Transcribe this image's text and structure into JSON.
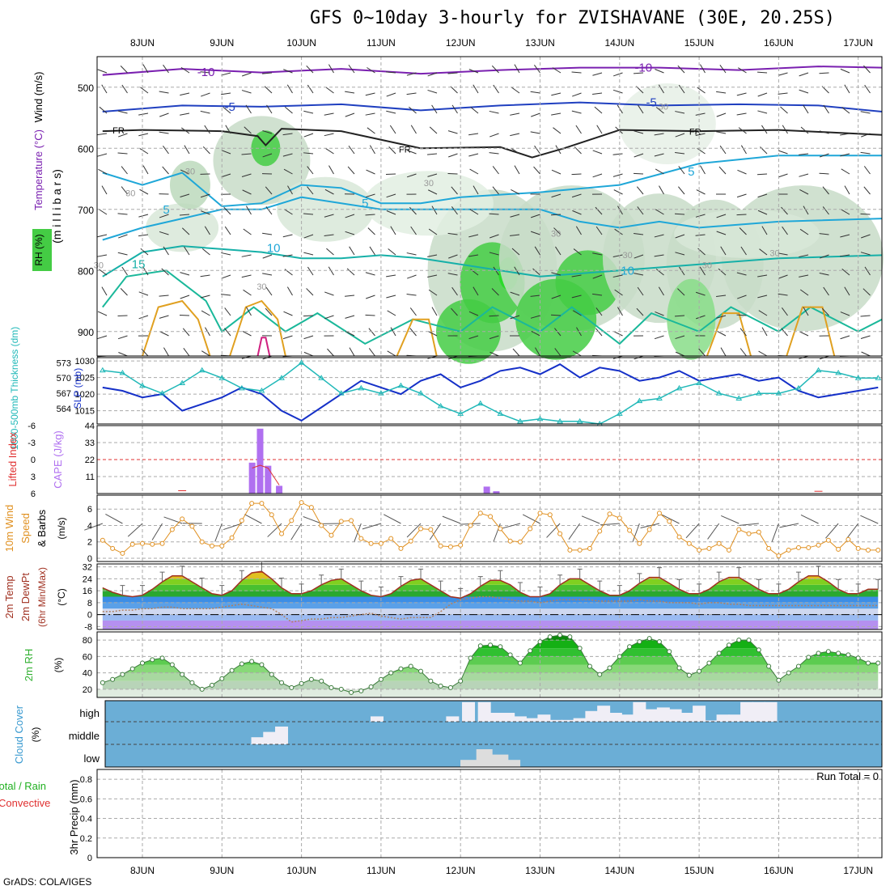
{
  "title": "GFS 0~10day 3-hourly for ZVISHAVANE (30E, 20.25S)",
  "credit": "GrADS: COLA/IGES",
  "dates": [
    "8JUN",
    "9JUN",
    "10JUN",
    "11JUN",
    "12JUN",
    "13JUN",
    "14JUN",
    "15JUN",
    "16JUN",
    "17JUN"
  ],
  "colors": {
    "grid": "#aaaaaa",
    "t_warm": "#e0a020",
    "t_cool": "#1fa7d8",
    "t_cold": "#2040c0",
    "t_vcold": "#7a20b0",
    "rh": "#44cc44",
    "slp": "#1530c8",
    "thick": "#20b8b8",
    "cape": "#b070f0",
    "li": "#e03030",
    "wind": "#e09020",
    "temp": "#a03020",
    "dew": "#b08060",
    "rh2m": "#30b030",
    "cloud": "#6baed6",
    "cloudfill": "#f0eef6"
  },
  "chart_data": [
    {
      "id": "upper",
      "type": "contour",
      "labels": {
        "wind": "Wind (m/s)",
        "temperature": "Temperature (°C)",
        "rh": "RH (%)",
        "pressure": "(m i l l i b a r s)"
      },
      "y_ticks": [
        "500",
        "600",
        "700",
        "800",
        "900"
      ],
      "y_range": [
        450,
        940
      ],
      "contour_labels": [
        {
          "text": "-10",
          "d": 0.8,
          "p": 475
        },
        {
          "text": "-10",
          "d": 6.3,
          "p": 468
        },
        {
          "text": "-5",
          "d": 1.1,
          "p": 532
        },
        {
          "text": "-5",
          "d": 6.4,
          "p": 525
        },
        {
          "text": "FR",
          "d": -0.3,
          "p": 569
        },
        {
          "text": "FR",
          "d": 3.3,
          "p": 600
        },
        {
          "text": "FR",
          "d": 6.95,
          "p": 571
        },
        {
          "text": "5",
          "d": 0.3,
          "p": 700
        },
        {
          "text": "5",
          "d": 2.8,
          "p": 690
        },
        {
          "text": "5",
          "d": 6.9,
          "p": 638
        },
        {
          "text": "10",
          "d": 1.65,
          "p": 763
        },
        {
          "text": "10",
          "d": 6.1,
          "p": 800
        },
        {
          "text": "15",
          "d": -0.05,
          "p": 790
        },
        {
          "text": "30",
          "d": 0.6,
          "p": 636
        },
        {
          "text": "30",
          "d": -0.15,
          "p": 672
        },
        {
          "text": "30",
          "d": 3.6,
          "p": 655
        },
        {
          "text": "30",
          "d": 1.5,
          "p": 825
        },
        {
          "text": "30",
          "d": 5.2,
          "p": 738
        },
        {
          "text": "30",
          "d": 6.1,
          "p": 773
        },
        {
          "text": "30",
          "d": 6.55,
          "p": 530
        },
        {
          "text": "30",
          "d": 7.1,
          "p": 790
        },
        {
          "text": "30",
          "d": -0.55,
          "p": 790
        },
        {
          "text": "30",
          "d": 7.95,
          "p": 770
        }
      ]
    },
    {
      "id": "slp_thickness",
      "type": "line",
      "labels": {
        "thickness": "1000-500mb Thickness (dm)",
        "slp": "SLP (mb)"
      },
      "left_ticks": [
        "573",
        "570",
        "567",
        "564"
      ],
      "right_ticks": [
        "1030",
        "1025",
        "1020",
        "1015"
      ],
      "x": [
        -0.5,
        -0.25,
        0,
        0.25,
        0.5,
        0.75,
        1,
        1.25,
        1.5,
        1.75,
        2,
        2.25,
        2.5,
        2.75,
        3,
        3.25,
        3.5,
        3.75,
        4,
        4.25,
        4.5,
        4.75,
        5,
        5.25,
        5.5,
        5.75,
        6,
        6.25,
        6.5,
        6.75,
        7,
        7.25,
        7.5,
        7.75,
        8,
        8.25,
        8.5,
        8.75,
        9,
        9.25
      ],
      "series": [
        {
          "name": "SLP",
          "values": [
            1022,
            1021,
            1019,
            1020,
            1015,
            1017,
            1019,
            1022,
            1020,
            1015,
            1012,
            1016,
            1020,
            1024,
            1022,
            1020,
            1024,
            1026,
            1022,
            1024,
            1027,
            1028,
            1026,
            1029,
            1025,
            1028,
            1027,
            1024,
            1025,
            1027,
            1024,
            1025,
            1026,
            1024,
            1025,
            1021,
            1019,
            1020,
            1021,
            1022
          ]
        },
        {
          "name": "Thickness",
          "values": [
            571.5,
            571,
            568.5,
            567,
            569,
            571.5,
            570,
            568,
            567.5,
            570,
            573,
            570,
            567,
            568,
            567,
            568.5,
            567,
            564.5,
            563,
            565,
            563,
            561.5,
            562,
            561.5,
            561.5,
            561,
            563,
            565.5,
            566,
            568,
            569,
            567,
            566,
            567,
            567,
            568,
            571.5,
            571,
            570,
            570
          ]
        }
      ]
    },
    {
      "id": "cape_li",
      "type": "bar",
      "labels": {
        "li": "Lifted Index",
        "cape": "CAPE (J/kg)"
      },
      "left_ticks": [
        "-6",
        "-3",
        "0",
        "3",
        "6"
      ],
      "right_ticks": [
        "44",
        "33",
        "22",
        "11"
      ],
      "bars": [
        {
          "x": 1.38,
          "v": 20
        },
        {
          "x": 1.48,
          "v": 42
        },
        {
          "x": 1.58,
          "v": 18
        },
        {
          "x": 1.72,
          "v": 5
        },
        {
          "x": 4.33,
          "v": 4.5
        },
        {
          "x": 4.45,
          "v": 1.5
        }
      ],
      "li_points": [
        {
          "x": 0.45,
          "v": 5.5
        },
        {
          "x": 0.55,
          "v": 5.5
        },
        {
          "x": 1.38,
          "v": 1.5
        },
        {
          "x": 1.48,
          "v": 1
        },
        {
          "x": 1.58,
          "v": 1.5
        },
        {
          "x": 1.72,
          "v": 4.5
        },
        {
          "x": 8.45,
          "v": 5.6
        },
        {
          "x": 8.55,
          "v": 5.6
        }
      ]
    },
    {
      "id": "wind10m",
      "type": "line",
      "labels": {
        "wind": "10m Wind",
        "speed": "Speed",
        "barbs": "& Barbs",
        "unit": "(m/s)"
      },
      "y_ticks": [
        "6",
        "4",
        "2",
        "0"
      ],
      "x": [
        -0.5,
        -0.375,
        -0.25,
        -0.125,
        0,
        0.125,
        0.25,
        0.375,
        0.5,
        0.625,
        0.75,
        0.875,
        1,
        1.125,
        1.25,
        1.375,
        1.5,
        1.625,
        1.75,
        1.875,
        2,
        2.125,
        2.25,
        2.375,
        2.5,
        2.625,
        2.75,
        2.875,
        3,
        3.125,
        3.25,
        3.375,
        3.5,
        3.625,
        3.75,
        3.875,
        4,
        4.125,
        4.25,
        4.375,
        4.5,
        4.625,
        4.75,
        4.875,
        5,
        5.125,
        5.25,
        5.375,
        5.5,
        5.625,
        5.75,
        5.875,
        6,
        6.125,
        6.25,
        6.375,
        6.5,
        6.625,
        6.75,
        6.875,
        7,
        7.125,
        7.25,
        7.375,
        7.5,
        7.625,
        7.75,
        7.875,
        8,
        8.125,
        8.25,
        8.375,
        8.5,
        8.625,
        8.75,
        8.875,
        9,
        9.125,
        9.25
      ],
      "series": [
        {
          "name": "Speed",
          "values": [
            2.2,
            1.2,
            0.6,
            1.7,
            1.8,
            1.7,
            1.8,
            3.5,
            4.8,
            3.9,
            2.0,
            1.5,
            1.5,
            2.5,
            4.6,
            6.7,
            6.7,
            5.3,
            3.0,
            4.6,
            6.8,
            6.2,
            4.0,
            2.8,
            4.5,
            4.6,
            2.4,
            1.8,
            1.8,
            2.4,
            1.2,
            2.1,
            3.6,
            3.5,
            1.5,
            1.4,
            1.6,
            4.0,
            5.5,
            5.1,
            3.6,
            2.1,
            2.0,
            3.6,
            5.5,
            5.3,
            3.0,
            1.0,
            1.0,
            1.2,
            3.3,
            5.4,
            4.9,
            3.4,
            1.8,
            3.5,
            5.5,
            4.5,
            2.6,
            1.8,
            1.0,
            1.2,
            1.8,
            1.0,
            3.5,
            3.0,
            3.2,
            1.2,
            0.3,
            1.0,
            1.3,
            1.3,
            1.6,
            2.2,
            1.1,
            2.3,
            1.2,
            1.0,
            1.0
          ]
        }
      ]
    },
    {
      "id": "temp2m",
      "type": "area",
      "labels": {
        "temp": "2m Temp",
        "dew": "2m DewPt",
        "minmax": "(6hr Min/Max)",
        "unit": "(°C)"
      },
      "y_ticks": [
        "32",
        "24",
        "16",
        "8",
        "0",
        "-8"
      ],
      "x": [
        -0.5,
        -0.375,
        -0.25,
        -0.125,
        0,
        0.125,
        0.25,
        0.375,
        0.5,
        0.625,
        0.75,
        0.875,
        1,
        1.125,
        1.25,
        1.375,
        1.5,
        1.625,
        1.75,
        1.875,
        2,
        2.125,
        2.25,
        2.375,
        2.5,
        2.625,
        2.75,
        2.875,
        3,
        3.125,
        3.25,
        3.375,
        3.5,
        3.625,
        3.75,
        3.875,
        4,
        4.125,
        4.25,
        4.375,
        4.5,
        4.625,
        4.75,
        4.875,
        5,
        5.125,
        5.25,
        5.375,
        5.5,
        5.625,
        5.75,
        5.875,
        6,
        6.125,
        6.25,
        6.375,
        6.5,
        6.625,
        6.75,
        6.875,
        7,
        7.125,
        7.25,
        7.375,
        7.5,
        7.625,
        7.75,
        7.875,
        8,
        8.125,
        8.25,
        8.375,
        8.5,
        8.625,
        8.75,
        8.875,
        9,
        9.125,
        9.25
      ],
      "series": [
        {
          "name": "Temp",
          "values": [
            18,
            15,
            13,
            12,
            13,
            17,
            22,
            26,
            26,
            22,
            18,
            14,
            13,
            16,
            23,
            28,
            29,
            24,
            18,
            14,
            14,
            16,
            20,
            23,
            24,
            20,
            16,
            13,
            12,
            14,
            19,
            23,
            24,
            20,
            16,
            12,
            11,
            14,
            19,
            23,
            23,
            20,
            15,
            12,
            12,
            14,
            20,
            24,
            24,
            20,
            16,
            13,
            13,
            16,
            21,
            25,
            25,
            21,
            17,
            14,
            14,
            17,
            22,
            25,
            25,
            21,
            17,
            14,
            14,
            17,
            22,
            26,
            26,
            22,
            17,
            14,
            14,
            17,
            17
          ]
        },
        {
          "name": "DewPt",
          "values": [
            2,
            2,
            3,
            3,
            4,
            4,
            5,
            5,
            4,
            4,
            4,
            4,
            5,
            6,
            7,
            6,
            5,
            4,
            0,
            -5,
            -4,
            -3,
            -3,
            -2,
            -2,
            -1,
            0,
            1,
            -1,
            -2,
            -3,
            -2,
            -2,
            -2,
            2,
            7,
            10,
            11,
            12,
            12,
            11,
            10,
            9,
            9,
            8,
            9,
            10,
            10,
            10,
            10,
            9,
            9,
            9,
            9,
            10,
            9,
            9,
            8,
            8,
            8,
            7,
            8,
            8,
            7,
            7,
            6,
            6,
            6,
            6,
            6,
            6,
            6,
            6,
            6,
            6,
            6,
            6,
            6,
            6
          ]
        }
      ]
    },
    {
      "id": "rh2m",
      "type": "area",
      "labels": {
        "rh": "2m RH",
        "unit": "(%)"
      },
      "y_ticks": [
        "80",
        "60",
        "40",
        "20"
      ],
      "x": [
        -0.5,
        -0.375,
        -0.25,
        -0.125,
        0,
        0.125,
        0.25,
        0.375,
        0.5,
        0.625,
        0.75,
        0.875,
        1,
        1.125,
        1.25,
        1.375,
        1.5,
        1.625,
        1.75,
        1.875,
        2,
        2.125,
        2.25,
        2.375,
        2.5,
        2.625,
        2.75,
        2.875,
        3,
        3.125,
        3.25,
        3.375,
        3.5,
        3.625,
        3.75,
        3.875,
        4,
        4.125,
        4.25,
        4.375,
        4.5,
        4.625,
        4.75,
        4.875,
        5,
        5.125,
        5.25,
        5.375,
        5.5,
        5.625,
        5.75,
        5.875,
        6,
        6.125,
        6.25,
        6.375,
        6.5,
        6.625,
        6.75,
        6.875,
        7,
        7.125,
        7.25,
        7.375,
        7.5,
        7.625,
        7.75,
        7.875,
        8,
        8.125,
        8.25,
        8.375,
        8.5,
        8.625,
        8.75,
        8.875,
        9,
        9.125,
        9.25
      ],
      "series": [
        {
          "name": "RH",
          "values": [
            28,
            32,
            38,
            45,
            52,
            56,
            58,
            50,
            38,
            28,
            20,
            25,
            33,
            43,
            51,
            54,
            50,
            38,
            28,
            22,
            27,
            32,
            30,
            22,
            20,
            16,
            18,
            23,
            32,
            40,
            45,
            48,
            42,
            30,
            24,
            22,
            30,
            58,
            73,
            74,
            72,
            62,
            52,
            67,
            78,
            84,
            86,
            84,
            70,
            48,
            38,
            46,
            60,
            72,
            78,
            82,
            78,
            66,
            46,
            37,
            42,
            52,
            64,
            74,
            80,
            80,
            68,
            48,
            31,
            40,
            48,
            59,
            64,
            66,
            64,
            62,
            58,
            52,
            52
          ]
        }
      ]
    },
    {
      "id": "cloud",
      "type": "bar",
      "labels": {
        "cloud": "Cloud Cover",
        "unit": "(%)",
        "high": "high",
        "middle": "middle",
        "low": "low"
      },
      "high": [
        0,
        0,
        0,
        0,
        0,
        0,
        0,
        0,
        0,
        0,
        0,
        0,
        0,
        0,
        0,
        0,
        0,
        0,
        0,
        0,
        0,
        0,
        0,
        0,
        0,
        0,
        0,
        0,
        0,
        0,
        0,
        0,
        0,
        0,
        0,
        0,
        0,
        0,
        0,
        0,
        0,
        0,
        0,
        0,
        0,
        0,
        0,
        0,
        0,
        0,
        0,
        0,
        0,
        0,
        0,
        0,
        0,
        0,
        0,
        0,
        0,
        0,
        0,
        0,
        0,
        0,
        0,
        0,
        0,
        0,
        0,
        0,
        0,
        0,
        0,
        0,
        0,
        0,
        0,
        0,
        0,
        0,
        0,
        0,
        0
      ],
      "high_x": [
        2.95,
        3.9,
        4.1,
        4.3,
        4.45,
        4.6,
        4.75,
        4.9,
        5.05,
        5.2,
        5.35,
        5.5,
        5.65,
        5.8,
        5.95,
        6.1,
        6.25,
        6.4,
        6.55,
        6.7,
        6.85,
        7.0,
        7.15,
        7.3,
        7.45,
        7.6,
        7.75,
        7.9
      ],
      "high_v": [
        3,
        3,
        11,
        11,
        5,
        5,
        3,
        2,
        4,
        1,
        1,
        2,
        6,
        9,
        5,
        4,
        11,
        7,
        8,
        7,
        5,
        9,
        0.7,
        4,
        4,
        11,
        11,
        11
      ],
      "middle_x": [
        1.45,
        1.6,
        1.75
      ],
      "middle_v": [
        4,
        7,
        10
      ],
      "low_x": [
        4.1,
        4.3,
        4.5,
        4.65
      ],
      "low_v": [
        4,
        10,
        7,
        4
      ]
    },
    {
      "id": "precip",
      "type": "bar",
      "labels": {
        "total": "Total / Rain",
        "conv": "Convective",
        "precip": "3hr Precip (mm)",
        "run": "Run Total = 0"
      },
      "y_ticks": [
        "0.8",
        "0.6",
        "0.4",
        "0.2",
        "0"
      ],
      "values": []
    }
  ]
}
